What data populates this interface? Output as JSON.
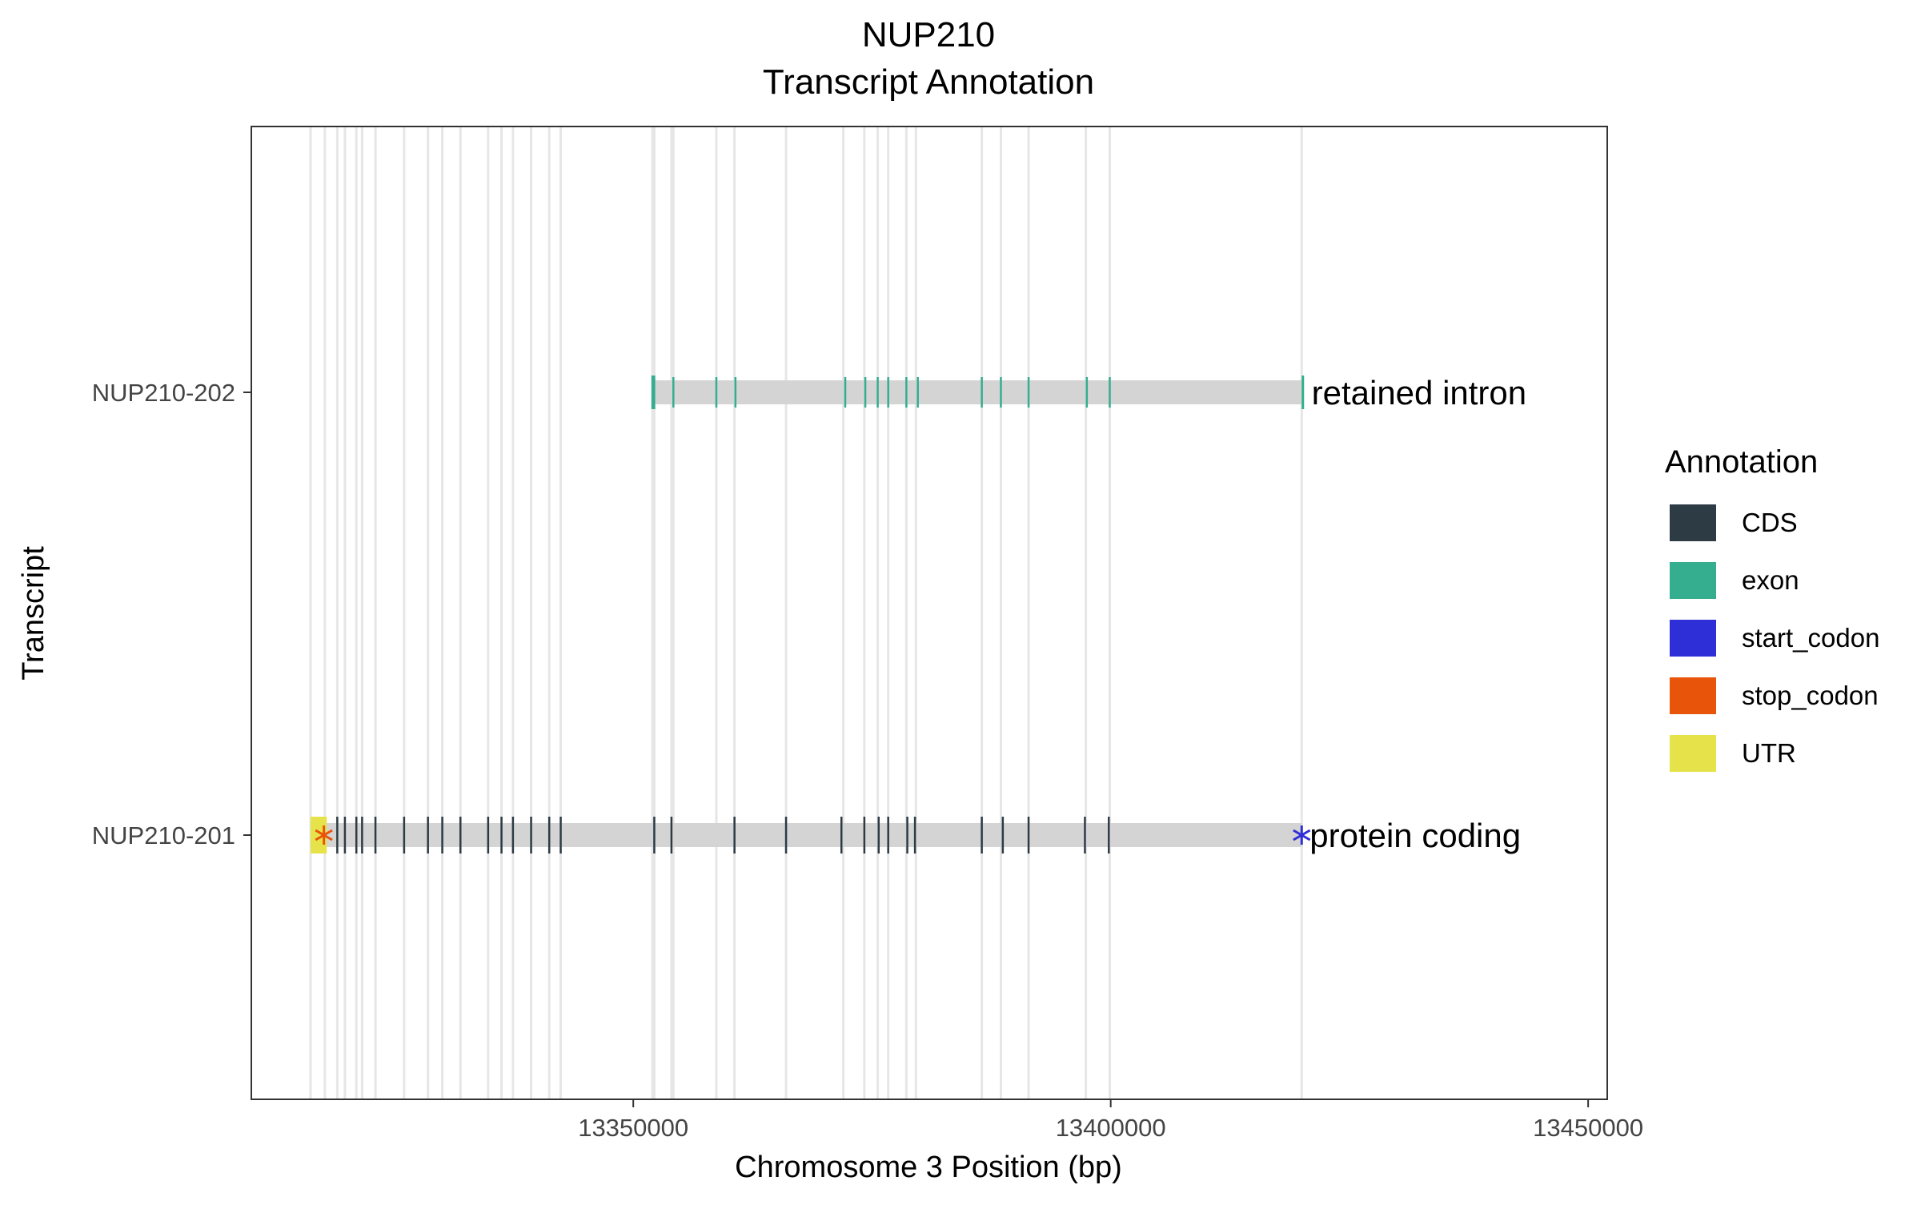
{
  "chart_data": {
    "type": "transcript-annotation",
    "title": "NUP210",
    "subtitle": "Transcript Annotation",
    "xlabel": "Chromosome 3 Position (bp)",
    "ylabel": "Transcript",
    "xlim": [
      13310000,
      13452000
    ],
    "x_ticks": [
      13350000,
      13400000,
      13450000
    ],
    "x_tick_labels": [
      "13350000",
      "13400000",
      "13450000"
    ],
    "grid": "vertical lines at exon positions",
    "legend_title": "Annotation",
    "legend_placement": "right",
    "legend": [
      {
        "label": "CDS",
        "color": "#2d3b45"
      },
      {
        "label": "exon",
        "color": "#35ad8f"
      },
      {
        "label": "start_codon",
        "color": "#2f2fd8"
      },
      {
        "label": "stop_codon",
        "color": "#e8540a"
      },
      {
        "label": "UTR",
        "color": "#e6e34a"
      }
    ],
    "backbone_color": "#d4d4d4",
    "transcripts": [
      {
        "name": "NUP210-202",
        "biotype_label": "retained intron",
        "start": 13352000,
        "end": 13420200,
        "exon": [
          13352100,
          13354200,
          13358700,
          13360700,
          13372200,
          13374300,
          13375600,
          13376700,
          13378600,
          13379800,
          13386500,
          13388500,
          13391400,
          13397500,
          13399900
        ],
        "exon_blocks": [
          [
            13351900,
            13352300
          ],
          [
            13420000,
            13420200
          ]
        ],
        "CDS": [],
        "UTR": [],
        "start_codon": [],
        "stop_codon": []
      },
      {
        "name": "NUP210-201",
        "biotype_label": "protein coding",
        "start": 13316200,
        "end": 13420000,
        "CDS": [
          13319000,
          13319800,
          13321000,
          13321600,
          13323000,
          13326000,
          13328500,
          13330000,
          13331900,
          13334800,
          13336200,
          13337400,
          13339300,
          13341200,
          13342400,
          13352200,
          13354000,
          13360600,
          13366000,
          13371800,
          13374200,
          13375700,
          13376700,
          13378700,
          13379500,
          13386500,
          13388700,
          13391400,
          13397300,
          13399800
        ],
        "exon": [],
        "UTR": [
          [
            13316200,
            13317900
          ]
        ],
        "start_codon": [
          13420000
        ],
        "stop_codon": [
          13317600
        ]
      }
    ],
    "grid_positions": [
      13316200,
      13317700,
      13319000,
      13319800,
      13321000,
      13321600,
      13323000,
      13326000,
      13328500,
      13330000,
      13331900,
      13334800,
      13336200,
      13337400,
      13339300,
      13341200,
      13342400,
      13352000,
      13352200,
      13354000,
      13354200,
      13358700,
      13360600,
      13366000,
      13372000,
      13374200,
      13375600,
      13376700,
      13378600,
      13379600,
      13386500,
      13388500,
      13391400,
      13397400,
      13399900,
      13420000
    ]
  }
}
